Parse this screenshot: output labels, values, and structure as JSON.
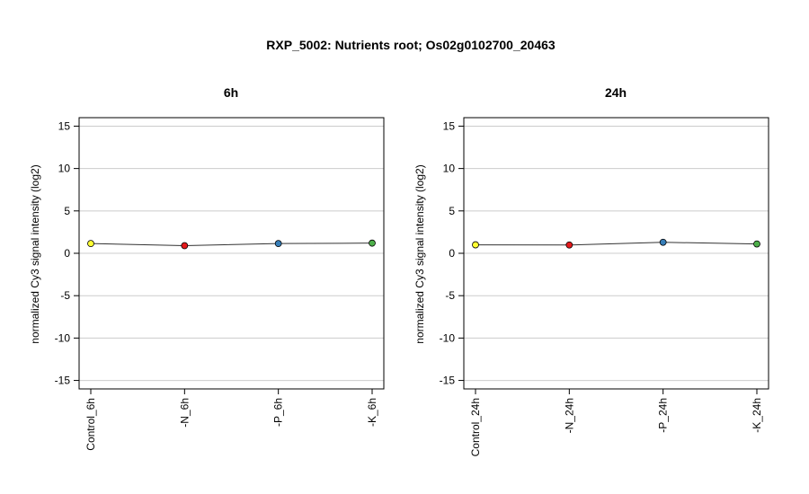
{
  "title": "RXP_5002: Nutrients root; Os02g0102700_20463",
  "chart_data": [
    {
      "type": "line",
      "title": "6h",
      "ylabel": "normalized Cy3 signal intensity (log2)",
      "xlabel": "",
      "ylim": [
        -16,
        16
      ],
      "yticks": [
        -15,
        -10,
        -5,
        0,
        5,
        10,
        15
      ],
      "grid": true,
      "categories": [
        "Control_6h",
        "-N_6h",
        "-P_6h",
        "-K_6h"
      ],
      "values": [
        1.15,
        0.9,
        1.15,
        1.2
      ],
      "point_colors": [
        "#ffff33",
        "#e41a1c",
        "#377eb8",
        "#4daf4a"
      ]
    },
    {
      "type": "line",
      "title": "24h",
      "ylabel": "normalized Cy3 signal intensity (log2)",
      "xlabel": "",
      "ylim": [
        -16,
        16
      ],
      "yticks": [
        -15,
        -10,
        -5,
        0,
        5,
        10,
        15
      ],
      "grid": true,
      "categories": [
        "Control_24h",
        "-N_24h",
        "-P_24h",
        "-K_24h"
      ],
      "values": [
        1.0,
        0.98,
        1.3,
        1.1
      ],
      "point_colors": [
        "#ffff33",
        "#e41a1c",
        "#377eb8",
        "#4daf4a"
      ]
    }
  ]
}
